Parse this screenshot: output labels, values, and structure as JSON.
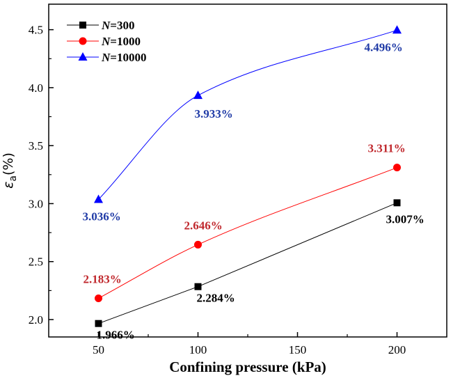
{
  "chart_data": {
    "type": "line",
    "title": "",
    "xlabel": "Confining pressure (kPa)",
    "ylabel": {
      "symbol": "ε",
      "subscript": "a",
      "unit": "(%)"
    },
    "xlim": [
      25,
      225
    ],
    "ylim": [
      1.85,
      4.72
    ],
    "xticks": [
      50,
      100,
      150,
      200
    ],
    "xtick_labels": [
      "50",
      "100",
      "150",
      "200"
    ],
    "yticks": [
      2.0,
      2.5,
      3.0,
      3.5,
      4.0,
      4.5
    ],
    "ytick_labels": [
      "2.0",
      "2.5",
      "3.0",
      "3.5",
      "4.0",
      "4.5"
    ],
    "grid": false,
    "legend_position": "top-left",
    "x": [
      50,
      100,
      200
    ],
    "series": [
      {
        "name_italic": "N",
        "name_rest": "=300",
        "marker": "square",
        "color": "#000000",
        "label_color": "#000000",
        "values": [
          1.966,
          2.284,
          3.007
        ],
        "labels": [
          "1.966%",
          "2.284%",
          "3.007%"
        ]
      },
      {
        "name_italic": "N",
        "name_rest": "=1000",
        "marker": "circle",
        "color": "#ff0000",
        "label_color": "#c0282d",
        "values": [
          2.183,
          2.646,
          3.311
        ],
        "labels": [
          "2.183%",
          "2.646%",
          "3.311%"
        ]
      },
      {
        "name_italic": "N",
        "name_rest": "=10000",
        "marker": "triangle",
        "color": "#0000ff",
        "label_color": "#1f3aa6",
        "values": [
          3.036,
          3.933,
          4.496
        ],
        "labels": [
          "3.036%",
          "3.933%",
          "4.496%"
        ]
      }
    ]
  }
}
